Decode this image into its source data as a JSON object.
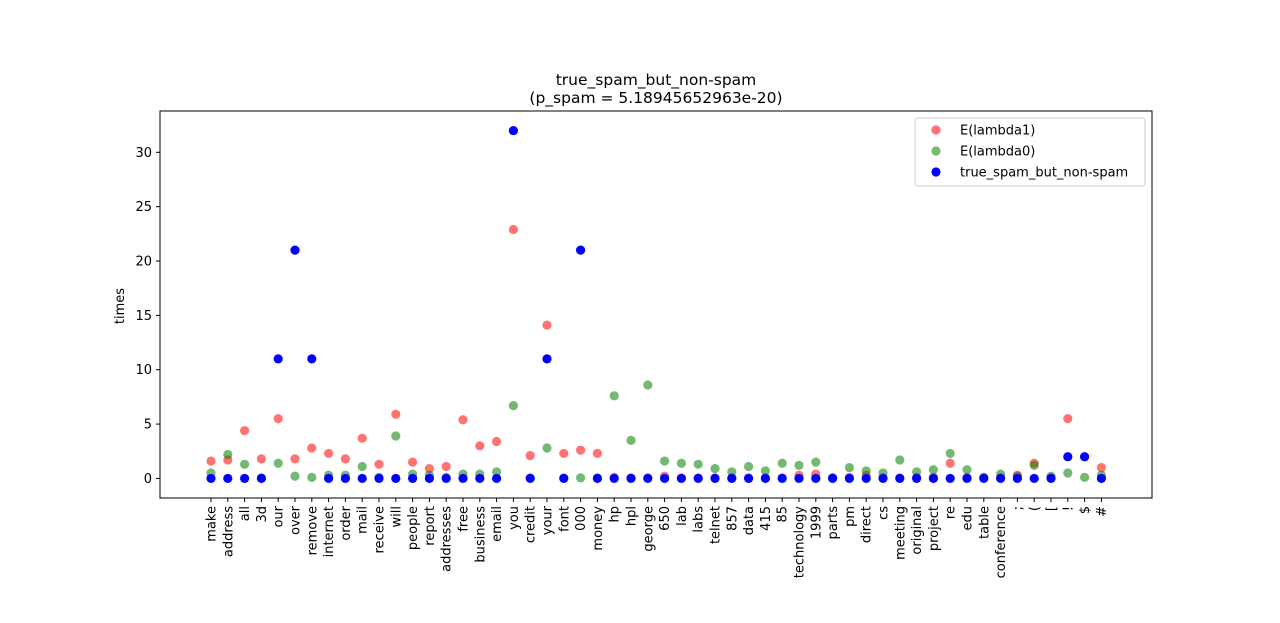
{
  "chart_data": {
    "type": "scatter",
    "title": "true_spam_but_non-spam",
    "subtitle": "(p_spam = 5.18945652963e-20)",
    "xlabel": "",
    "ylabel": "times",
    "ylim": [
      -1.8,
      33.8
    ],
    "yticks": [
      0,
      5,
      10,
      15,
      20,
      25,
      30
    ],
    "legend_position": "top-right",
    "grid": false,
    "categories": [
      "make",
      "address",
      "all",
      "3d",
      "our",
      "over",
      "remove",
      "internet",
      "order",
      "mail",
      "receive",
      "will",
      "people",
      "report",
      "addresses",
      "free",
      "business",
      "email",
      "you",
      "credit",
      "your",
      "font",
      "000",
      "money",
      "hp",
      "hpl",
      "george",
      "650",
      "lab",
      "labs",
      "telnet",
      "857",
      "data",
      "415",
      "85",
      "technology",
      "1999",
      "parts",
      "pm",
      "direct",
      "cs",
      "meeting",
      "original",
      "project",
      "re",
      "edu",
      "table",
      "conference",
      ";",
      "(",
      "[",
      "!",
      "$",
      "#"
    ],
    "series": [
      {
        "name": "E(lambda1)",
        "color": "#ff0000",
        "alpha": 0.55,
        "values": [
          1.6,
          1.7,
          4.4,
          1.8,
          5.5,
          1.8,
          2.8,
          2.3,
          1.8,
          3.7,
          1.3,
          5.9,
          1.5,
          0.9,
          1.1,
          5.4,
          3.0,
          3.4,
          22.9,
          2.1,
          14.1,
          2.3,
          2.6,
          2.3,
          0.1,
          0.05,
          0.05,
          0.2,
          0.05,
          0.05,
          0.05,
          0.05,
          0.05,
          0.05,
          0.05,
          0.3,
          0.4,
          0.05,
          0.1,
          0.3,
          0.05,
          0.05,
          0.1,
          0.1,
          1.4,
          0.1,
          0.05,
          0.05,
          0.3,
          1.4,
          0.05,
          5.5,
          2.0,
          1.0
        ]
      },
      {
        "name": "E(lambda0)",
        "color": "#008000",
        "alpha": 0.55,
        "values": [
          0.5,
          2.2,
          1.3,
          0.05,
          1.4,
          0.2,
          0.1,
          0.3,
          0.3,
          1.1,
          0.1,
          3.9,
          0.4,
          0.3,
          0.1,
          0.4,
          0.4,
          0.6,
          6.7,
          0.05,
          2.8,
          0.05,
          0.05,
          0.05,
          7.6,
          3.5,
          8.6,
          1.6,
          1.4,
          1.3,
          0.9,
          0.6,
          1.1,
          0.7,
          1.4,
          1.2,
          1.5,
          0.05,
          1.0,
          0.7,
          0.5,
          1.7,
          0.6,
          0.8,
          2.3,
          0.8,
          0.1,
          0.4,
          0.2,
          1.2,
          0.2,
          0.5,
          0.1,
          0.3
        ]
      },
      {
        "name": "true_spam_but_non-spam",
        "color": "#0000ff",
        "alpha": 1.0,
        "values": [
          0,
          0,
          0,
          0,
          11,
          21,
          11,
          0,
          0,
          0,
          0,
          0,
          0,
          0,
          0,
          0,
          0,
          0,
          32,
          0,
          11,
          0,
          21,
          0,
          0,
          0,
          0,
          0,
          0,
          0,
          0,
          0,
          0,
          0,
          0,
          0,
          0,
          0,
          0,
          0,
          0,
          0,
          0,
          0,
          0,
          0,
          0,
          0,
          0,
          0,
          0,
          2,
          2,
          0
        ]
      }
    ]
  }
}
